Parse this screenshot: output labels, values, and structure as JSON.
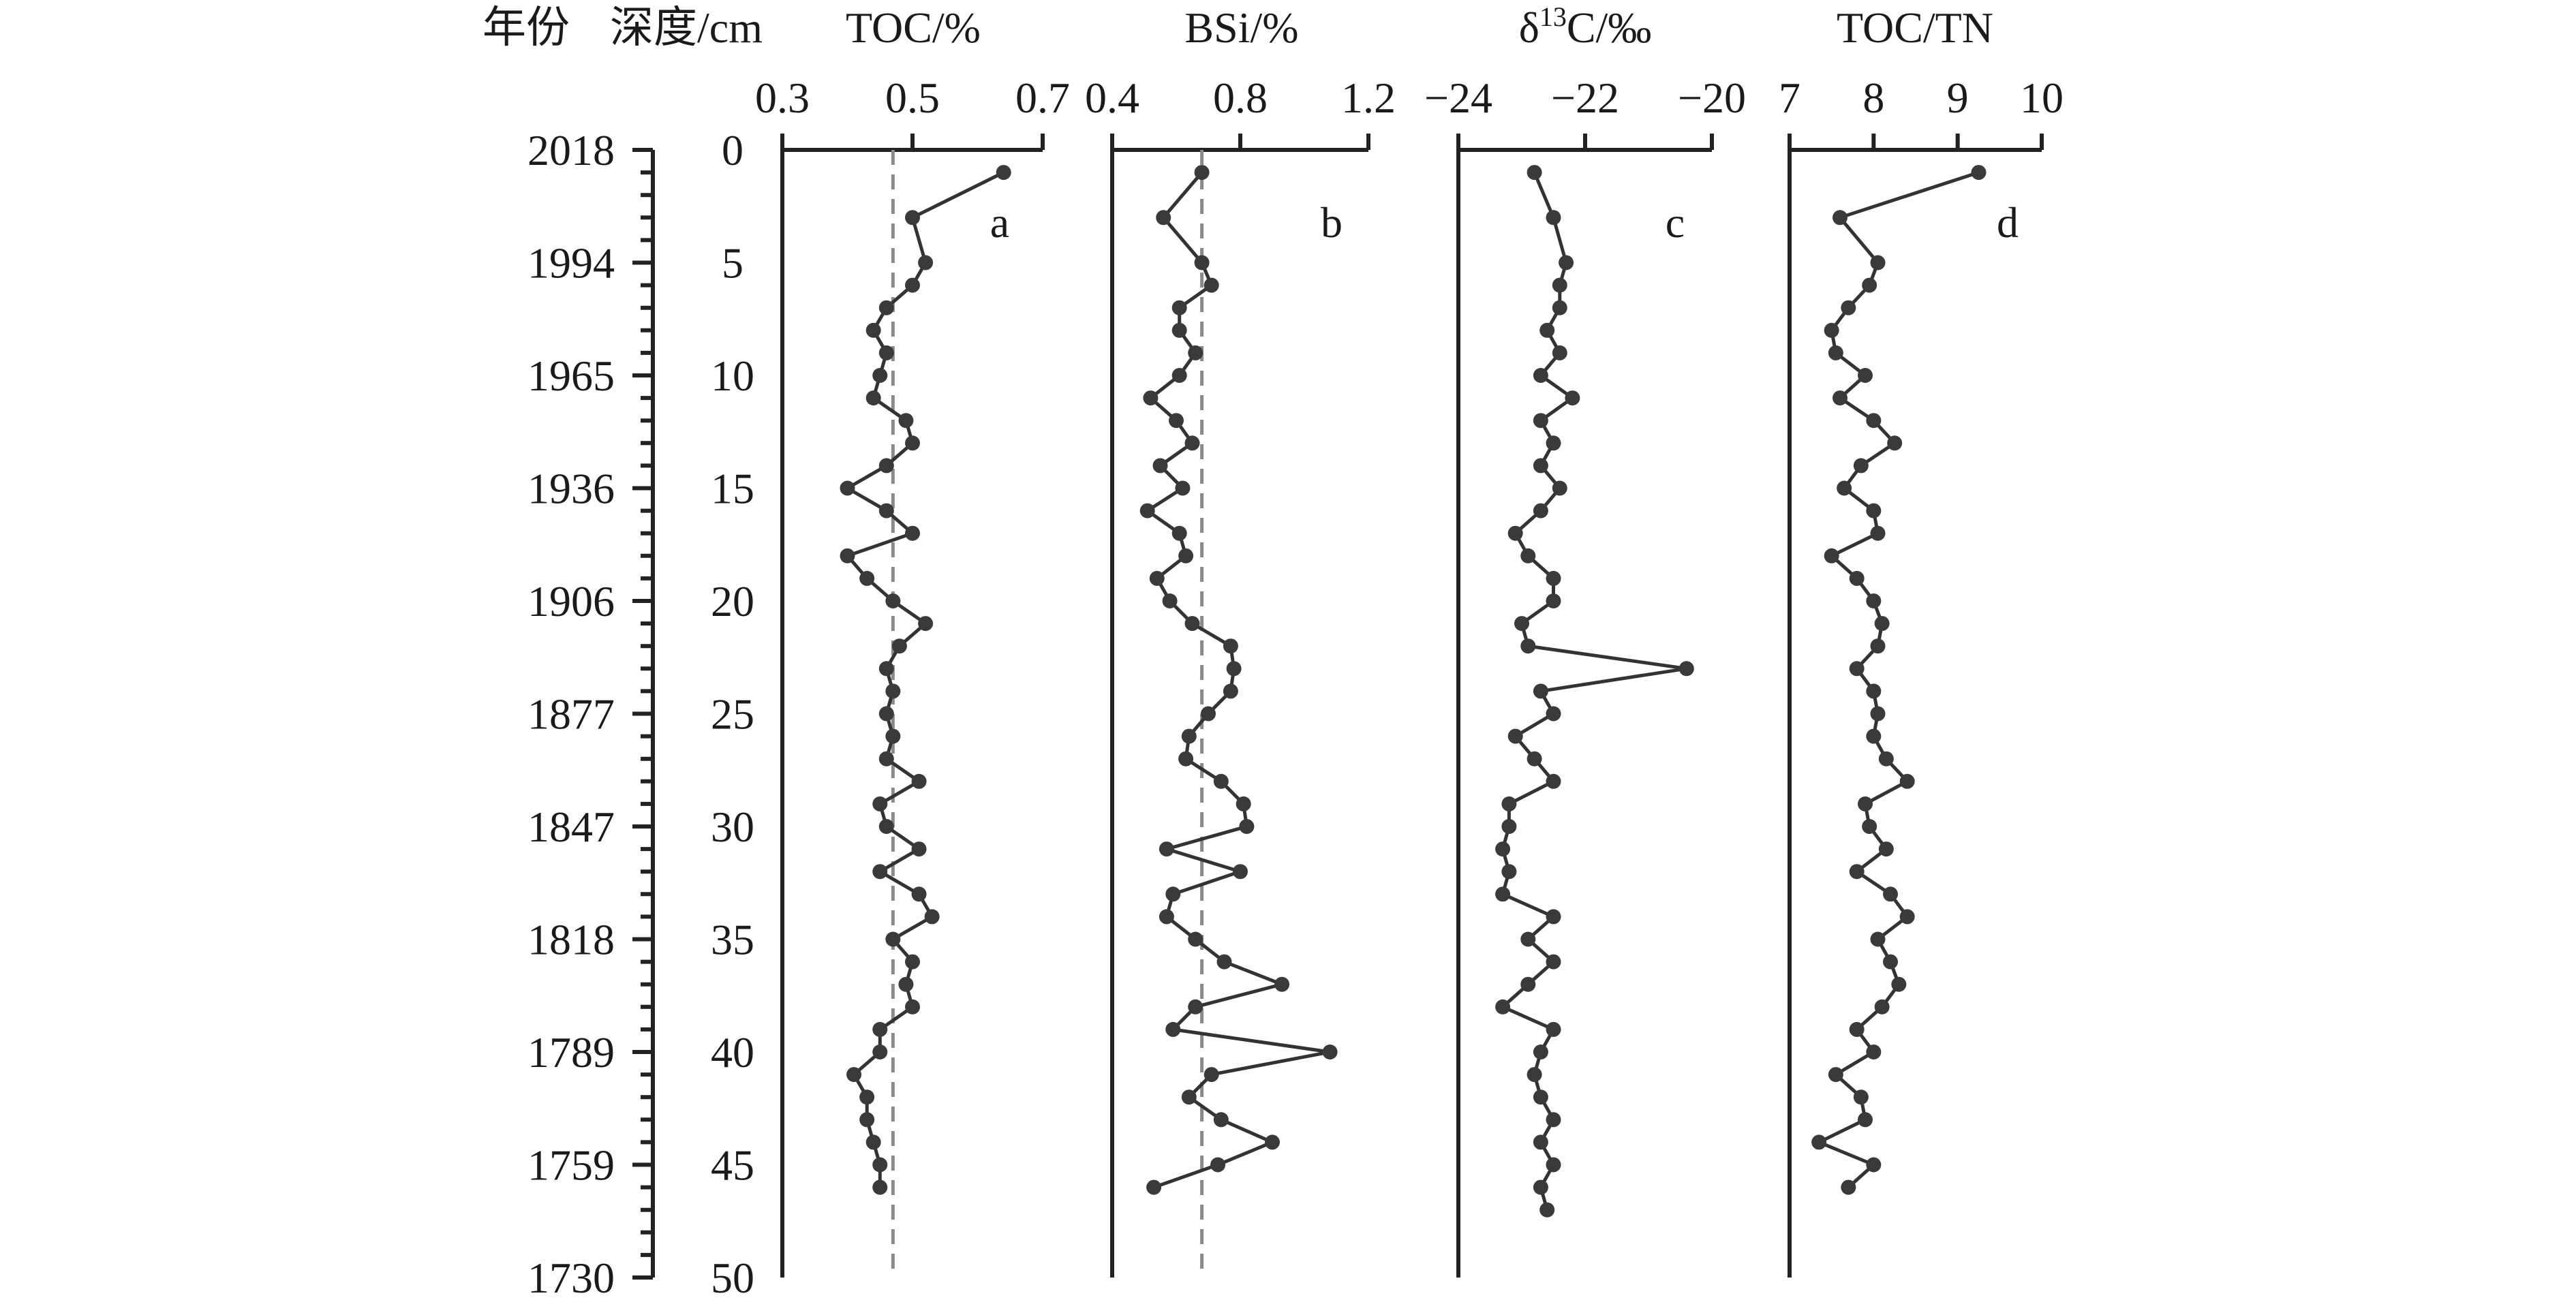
{
  "header": {
    "year_label": "年份",
    "depth_label": "深度/cm"
  },
  "depth_axis": {
    "ticks": [
      0,
      5,
      10,
      15,
      20,
      25,
      30,
      35,
      40,
      45,
      50
    ],
    "range": [
      0,
      50
    ],
    "minor_step": 1
  },
  "year_axis": {
    "ticks": [
      {
        "depth": 0,
        "label": "2018"
      },
      {
        "depth": 5,
        "label": "1994"
      },
      {
        "depth": 10,
        "label": "1965"
      },
      {
        "depth": 15,
        "label": "1936"
      },
      {
        "depth": 20,
        "label": "1906"
      },
      {
        "depth": 25,
        "label": "1877"
      },
      {
        "depth": 30,
        "label": "1847"
      },
      {
        "depth": 35,
        "label": "1818"
      },
      {
        "depth": 40,
        "label": "1789"
      },
      {
        "depth": 45,
        "label": "1759"
      },
      {
        "depth": 50,
        "label": "1730"
      }
    ]
  },
  "chart_data": [
    {
      "type": "line",
      "panel": "a",
      "title": "TOC/%",
      "xlim": [
        0.3,
        0.7
      ],
      "xticks": [
        0.3,
        0.5,
        0.7
      ],
      "xtick_labels": [
        "0.3",
        "0.5",
        "0.7"
      ],
      "reference_x": 0.47,
      "x": [
        0.64,
        0.5,
        0.52,
        0.5,
        0.46,
        0.44,
        0.46,
        0.45,
        0.44,
        0.49,
        0.5,
        0.46,
        0.4,
        0.46,
        0.5,
        0.4,
        0.43,
        0.47,
        0.52,
        0.48,
        0.46,
        0.47,
        0.46,
        0.47,
        0.46,
        0.51,
        0.45,
        0.46,
        0.51,
        0.45,
        0.51,
        0.53,
        0.47,
        0.5,
        0.49,
        0.5,
        0.45,
        0.45,
        0.41,
        0.43,
        0.43,
        0.44,
        0.45,
        0.45
      ],
      "y": [
        1,
        3,
        5,
        6,
        7,
        8,
        9,
        10,
        11,
        12,
        13,
        14,
        15,
        16,
        17,
        18,
        19,
        20,
        21,
        22,
        23,
        24,
        25,
        26,
        27,
        28,
        29,
        30,
        31,
        32,
        33,
        34,
        35,
        36,
        37,
        38,
        39,
        40,
        41,
        42,
        43,
        44,
        45,
        46
      ]
    },
    {
      "type": "line",
      "panel": "b",
      "title": "BSi/%",
      "xlim": [
        0.4,
        1.2
      ],
      "xticks": [
        0.4,
        0.8,
        1.2
      ],
      "xtick_labels": [
        "0.4",
        "0.8",
        "1.2"
      ],
      "reference_x": 0.68,
      "x": [
        0.68,
        0.56,
        0.68,
        0.71,
        0.61,
        0.61,
        0.66,
        0.61,
        0.52,
        0.6,
        0.65,
        0.55,
        0.62,
        0.51,
        0.61,
        0.63,
        0.54,
        0.58,
        0.65,
        0.77,
        0.78,
        0.77,
        0.7,
        0.64,
        0.63,
        0.74,
        0.81,
        0.82,
        0.57,
        0.8,
        0.59,
        0.57,
        0.66,
        0.75,
        0.93,
        0.66,
        0.59,
        1.08,
        0.71,
        0.64,
        0.74,
        0.9,
        0.73,
        0.53
      ],
      "y": [
        1,
        3,
        5,
        6,
        7,
        8,
        9,
        10,
        11,
        12,
        13,
        14,
        15,
        16,
        17,
        18,
        19,
        20,
        21,
        22,
        23,
        24,
        25,
        26,
        27,
        28,
        29,
        30,
        31,
        32,
        33,
        34,
        35,
        36,
        37,
        38,
        39,
        40,
        41,
        42,
        43,
        44,
        45,
        46
      ]
    },
    {
      "type": "line",
      "panel": "c",
      "title": "δ¹³C/‰",
      "title_base": "δ",
      "title_sup": "13",
      "title_rest": "C/‰",
      "xlim": [
        -24,
        -20
      ],
      "xticks": [
        -24,
        -22,
        -20
      ],
      "xtick_labels": [
        "−24",
        "−22",
        "−20"
      ],
      "x": [
        -22.8,
        -22.5,
        -22.3,
        -22.4,
        -22.4,
        -22.6,
        -22.4,
        -22.7,
        -22.2,
        -22.7,
        -22.5,
        -22.7,
        -22.4,
        -22.7,
        -23.1,
        -22.9,
        -22.5,
        -22.5,
        -23.0,
        -22.9,
        -20.4,
        -22.7,
        -22.5,
        -23.1,
        -22.8,
        -22.5,
        -23.2,
        -23.2,
        -23.3,
        -23.2,
        -23.3,
        -22.5,
        -22.9,
        -22.5,
        -22.9,
        -23.3,
        -22.5,
        -22.7,
        -22.8,
        -22.7,
        -22.5,
        -22.7,
        -22.5,
        -22.7,
        -22.6
      ],
      "y": [
        1,
        3,
        5,
        6,
        7,
        8,
        9,
        10,
        11,
        12,
        13,
        14,
        15,
        16,
        17,
        18,
        19,
        20,
        21,
        22,
        23,
        24,
        25,
        26,
        27,
        28,
        29,
        30,
        31,
        32,
        33,
        34,
        35,
        36,
        37,
        38,
        39,
        40,
        41,
        42,
        43,
        44,
        45,
        46,
        47
      ]
    },
    {
      "type": "line",
      "panel": "d",
      "title": "TOC/TN",
      "xlim": [
        7,
        10
      ],
      "xticks": [
        7,
        8,
        9,
        10
      ],
      "xtick_labels": [
        "7",
        "8",
        "9",
        "10"
      ],
      "x": [
        9.25,
        7.6,
        8.05,
        7.95,
        7.7,
        7.5,
        7.55,
        7.9,
        7.6,
        8.0,
        8.25,
        7.85,
        7.65,
        8.0,
        8.05,
        7.5,
        7.8,
        8.0,
        8.1,
        8.05,
        7.8,
        8.0,
        8.05,
        8.0,
        8.15,
        8.4,
        7.9,
        7.95,
        8.15,
        7.8,
        8.2,
        8.4,
        8.05,
        8.2,
        8.3,
        8.1,
        7.8,
        8.0,
        7.55,
        7.85,
        7.9,
        7.35,
        8.0,
        7.7
      ],
      "y": [
        1,
        3,
        5,
        6,
        7,
        8,
        9,
        10,
        11,
        12,
        13,
        14,
        15,
        16,
        17,
        18,
        19,
        20,
        21,
        22,
        23,
        24,
        25,
        26,
        27,
        28,
        29,
        30,
        31,
        32,
        33,
        34,
        35,
        36,
        37,
        38,
        39,
        40,
        41,
        42,
        43,
        44,
        45,
        46
      ]
    }
  ]
}
